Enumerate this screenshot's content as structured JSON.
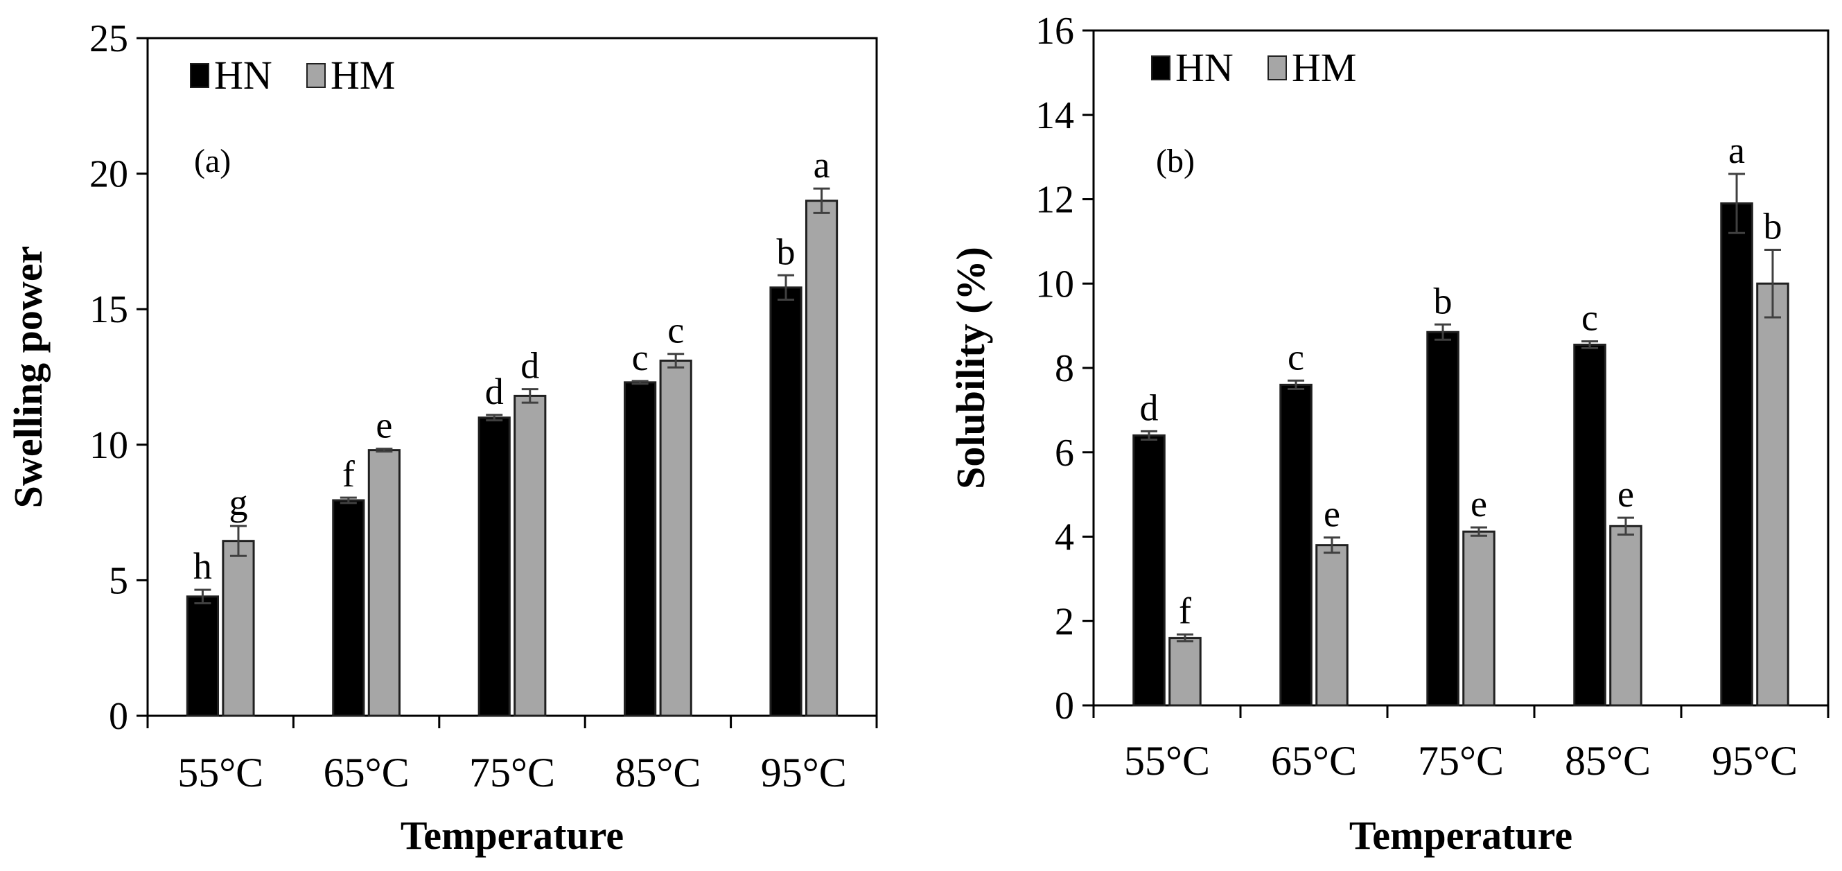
{
  "colors": {
    "HN": "#000000",
    "HM": "#a6a6a6",
    "error_bar": "#404040",
    "axis": "#000000"
  },
  "chart_data": [
    {
      "type": "bar",
      "panel_label": "(a)",
      "xlabel": "Temperature",
      "ylabel": "Swelling power",
      "ylim": [
        0,
        25
      ],
      "yticks": [
        "0",
        "5",
        "10",
        "15",
        "20",
        "25"
      ],
      "categories": [
        "55°C",
        "65°C",
        "75°C",
        "85°C",
        "95°C"
      ],
      "legend": [
        "HN",
        "HM"
      ],
      "legend_position": "top-left",
      "series": [
        {
          "name": "HN",
          "values": [
            4.4,
            7.95,
            11.0,
            12.3,
            15.8
          ],
          "errors": [
            0.25,
            0.1,
            0.1,
            0.05,
            0.45
          ],
          "letters": [
            "h",
            "f",
            "d",
            "c",
            "b"
          ]
        },
        {
          "name": "HM",
          "values": [
            6.45,
            9.8,
            11.8,
            13.1,
            19.0
          ],
          "errors": [
            0.55,
            0.05,
            0.25,
            0.25,
            0.45
          ],
          "letters": [
            "g",
            "e",
            "d",
            "c",
            "a"
          ]
        }
      ]
    },
    {
      "type": "bar",
      "panel_label": "(b)",
      "xlabel": "Temperature",
      "ylabel": "Solubility (%)",
      "ylim": [
        0,
        16
      ],
      "yticks": [
        "0",
        "2",
        "4",
        "6",
        "8",
        "10",
        "12",
        "14",
        "16"
      ],
      "categories": [
        "55°C",
        "65°C",
        "75°C",
        "85°C",
        "95°C"
      ],
      "legend": [
        "HN",
        "HM"
      ],
      "legend_position": "top-left",
      "series": [
        {
          "name": "HN",
          "values": [
            6.4,
            7.6,
            8.85,
            8.55,
            11.9
          ],
          "errors": [
            0.1,
            0.1,
            0.18,
            0.08,
            0.7
          ],
          "letters": [
            "d",
            "c",
            "b",
            "c",
            "a"
          ]
        },
        {
          "name": "HM",
          "values": [
            1.6,
            3.8,
            4.12,
            4.25,
            10.0
          ],
          "errors": [
            0.08,
            0.18,
            0.1,
            0.2,
            0.8
          ],
          "letters": [
            "f",
            "e",
            "e",
            "e",
            "b"
          ]
        }
      ]
    }
  ]
}
